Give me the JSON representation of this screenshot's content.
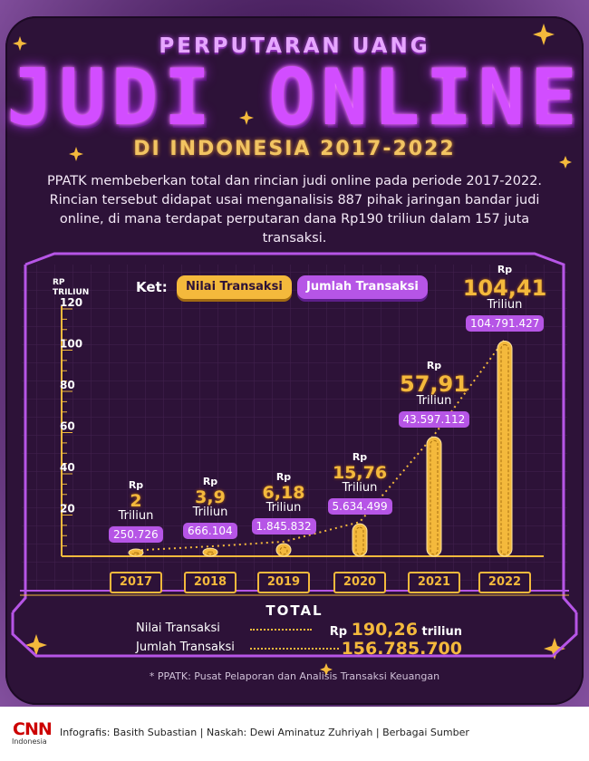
{
  "header": {
    "title_top": "PERPUTARAN UANG",
    "title_main": "JUDI ONLINE",
    "title_sub": "DI INDONESIA 2017-2022",
    "intro": "PPATK membeberkan total dan rincian judi online pada periode 2017-2022. Rincian tersebut didapat usai menganalisis 887 pihak jaringan bandar judi online, di mana terdapat perputaran dana Rp190 triliun dalam 157 juta transaksi."
  },
  "legend": {
    "ket": "Ket:",
    "nilai": "Nilai Transaksi",
    "jumlah": "Jumlah Transaksi"
  },
  "colors": {
    "gold": "#f4b93c",
    "purple": "#b655e6",
    "background": "#2d1238"
  },
  "chart_data": {
    "type": "bar",
    "y_axis_label_line1": "RP",
    "y_axis_label_line2": "TRILIUN",
    "ylim": [
      0,
      120
    ],
    "yticks": [
      20,
      40,
      60,
      80,
      100,
      120
    ],
    "categories": [
      "2017",
      "2018",
      "2019",
      "2020",
      "2021",
      "2022"
    ],
    "values": [
      2,
      3.9,
      6.18,
      15.76,
      57.91,
      104.41
    ],
    "value_labels": [
      "2",
      "3,9",
      "6,18",
      "15,76",
      "57,91",
      "104,41"
    ],
    "currency": "Rp",
    "unit": "Triliun",
    "transactions": [
      250726,
      666104,
      1845832,
      5634499,
      43597112,
      104791427
    ],
    "transaction_labels": [
      "250.726",
      "666.104",
      "1.845.832",
      "5.634.499",
      "43.597.112",
      "104.791.427"
    ],
    "grid": true,
    "legend_position": "top"
  },
  "totals": {
    "title": "TOTAL",
    "nilai_label": "Nilai Transaksi",
    "nilai_currency": "Rp",
    "nilai_value": "190,26",
    "nilai_suffix": "triliun",
    "jumlah_label": "Jumlah Transaksi",
    "jumlah_value": "156.785.700"
  },
  "note": "* PPATK: Pusat Pelaporan dan Analisis Transaksi Keuangan",
  "footer": {
    "brand": "CNN",
    "brand_sub": "Indonesia",
    "credit": "Infografis: Basith Subastian | Naskah: Dewi Aminatuz Zuhriyah | Berbagai Sumber"
  }
}
